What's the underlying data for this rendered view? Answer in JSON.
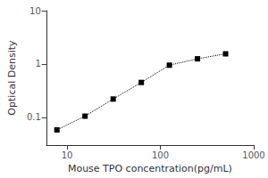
{
  "chart_data": {
    "type": "line",
    "xlabel": "Mouse TPO concentration(pg/mL)",
    "ylabel": "Optical Density",
    "x": [
      7.8,
      15.6,
      31.25,
      62.5,
      125,
      250,
      500
    ],
    "values": [
      0.058,
      0.105,
      0.22,
      0.45,
      0.95,
      1.25,
      1.55
    ],
    "xlim": [
      6,
      1000
    ],
    "ylim": [
      0.03,
      10
    ],
    "xticks": [
      10,
      100,
      1000
    ],
    "yticks": [
      0.1,
      1,
      10
    ],
    "log": true,
    "grid": false,
    "color": "black",
    "marker": "square",
    "line_style": "dotted"
  }
}
